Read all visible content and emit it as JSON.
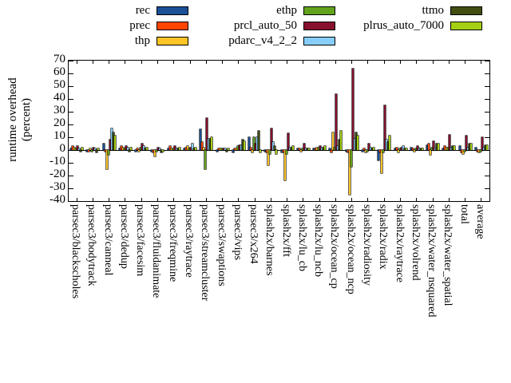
{
  "y_axis": {
    "title_line1": "runtime overhead",
    "title_line2": "(percent)",
    "ticks": [
      70,
      60,
      50,
      40,
      30,
      20,
      10,
      0,
      -10,
      -20,
      -30,
      -40
    ]
  },
  "legend_columns": [
    [
      "rec",
      "prec",
      "thp"
    ],
    [
      "ethp",
      "prcl_auto_50",
      "pdarc_v4_2_2"
    ],
    [
      "ttmo",
      "plrus_auto_7000"
    ]
  ],
  "chart_data": {
    "type": "bar",
    "title": "",
    "xlabel": "",
    "ylabel": "runtime overhead (percent)",
    "ylim": [
      -40,
      70
    ],
    "grid": false,
    "legend_position": "top",
    "categories": [
      "parsec3/blackscholes",
      "parsec3/bodytrack",
      "parsec3/canneal",
      "parsec3/dedup",
      "parsec3/facesim",
      "parsec3/fluidanimate",
      "parsec3/freqmine",
      "parsec3/raytrace",
      "parsec3/streamcluster",
      "parsec3/swaptions",
      "parsec3/vips",
      "parsec3/x264",
      "splash2x/barnes",
      "splash2x/fft",
      "splash2x/lu_cb",
      "splash2x/lu_ncb",
      "splash2x/ocean_cp",
      "splash2x/ocean_ncp",
      "splash2x/radiosity",
      "splash2x/radix",
      "splash2x/raytrace",
      "splash2x/volrend",
      "splash2x/water_nsquared",
      "splash2x/water_spatial",
      "total",
      "average"
    ],
    "series": [
      {
        "name": "rec",
        "color": "#1a5096",
        "values": [
          1,
          -1,
          5,
          1,
          -1,
          -1,
          1,
          1,
          16,
          -1,
          -2,
          10,
          -1,
          -2,
          1,
          1,
          1,
          -1,
          -1,
          -8,
          1,
          2,
          4,
          1,
          3,
          2
        ]
      },
      {
        "name": "prec",
        "color": "#ff4500",
        "values": [
          3,
          -1,
          -1,
          3,
          1,
          -2,
          3,
          2,
          6,
          1,
          1,
          2,
          -2,
          -2,
          1,
          1,
          -2,
          -2,
          1,
          -2,
          2,
          1,
          5,
          3,
          -2,
          -1
        ]
      },
      {
        "name": "thp",
        "color": "#ffc425",
        "values": [
          2,
          1,
          -15,
          2,
          -1,
          -5,
          1,
          3,
          2,
          1,
          1,
          -2,
          -12,
          -24,
          -1,
          2,
          14,
          -35,
          -2,
          -18,
          -2,
          -1,
          -4,
          2,
          -3,
          -2
        ]
      },
      {
        "name": "ethp",
        "color": "#62a31c",
        "values": [
          1,
          -1,
          -4,
          1,
          2,
          -1,
          1,
          1,
          -15,
          1,
          3,
          10,
          -3,
          -3,
          1,
          2,
          2,
          -13,
          -1,
          -2,
          1,
          1,
          2,
          2,
          -1,
          -1
        ]
      },
      {
        "name": "prcl_auto_50",
        "color": "#87102f",
        "values": [
          3,
          2,
          8,
          3,
          5,
          2,
          3,
          2,
          25,
          1,
          4,
          5,
          17,
          13,
          5,
          3,
          44,
          64,
          5,
          35,
          2,
          3,
          7,
          12,
          11,
          10
        ]
      },
      {
        "name": "pdarc_v4_2_2",
        "color": "#87cefa",
        "values": [
          1,
          1,
          17,
          2,
          3,
          1,
          1,
          5,
          9,
          1,
          4,
          10,
          6,
          2,
          1,
          2,
          3,
          9,
          2,
          8,
          3,
          1,
          1,
          2,
          2,
          2
        ]
      },
      {
        "name": "ttmo",
        "color": "#414e10",
        "values": [
          -1,
          -2,
          14,
          -1,
          1,
          -2,
          1,
          1,
          9,
          -1,
          8,
          15,
          3,
          2,
          1,
          2,
          8,
          14,
          1,
          6,
          1,
          1,
          5,
          3,
          5,
          4
        ]
      },
      {
        "name": "plrus_auto_7000",
        "color": "#a5cf12",
        "values": [
          2,
          1,
          11,
          2,
          2,
          -1,
          2,
          2,
          10,
          1,
          7,
          -2,
          -3,
          3,
          1,
          3,
          15,
          11,
          2,
          11,
          1,
          1,
          5,
          3,
          5,
          4
        ]
      }
    ]
  }
}
